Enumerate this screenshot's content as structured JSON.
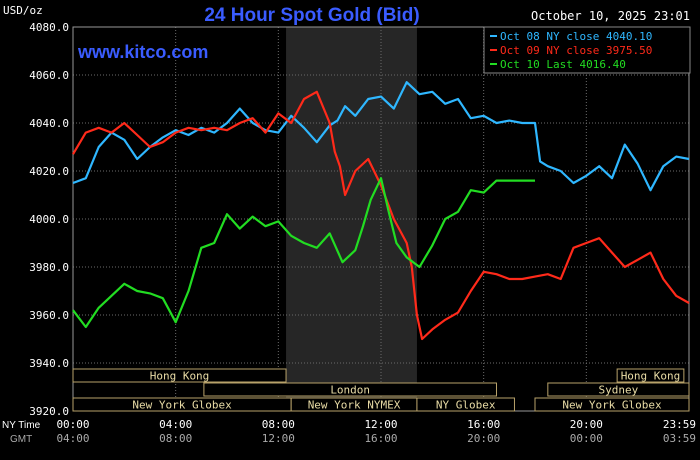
{
  "header": {
    "y_unit": "USD/oz",
    "title": "24 Hour Spot Gold (Bid)",
    "timestamp": "October 10, 2025 23:01",
    "watermark": "www.kitco.com"
  },
  "colors": {
    "background": "#000000",
    "title": "#3a5cff",
    "watermark": "#3a5cff",
    "grid": "#6b6b6b",
    "nymex_band": "#262626",
    "session_fill": "#000000",
    "session_stroke": "#b8a26a",
    "session_text": "#e9dca6",
    "axis_text": "#ffffff",
    "gmt_text": "#aaaaaa"
  },
  "chart_data": {
    "type": "line",
    "ylim": [
      3920,
      4080
    ],
    "xlim": [
      0,
      24
    ],
    "y_ticks": [
      "3920.0",
      "3940.0",
      "3960.0",
      "3980.0",
      "4000.0",
      "4020.0",
      "4040.0",
      "4060.0",
      "4080.0"
    ],
    "y_tick_values": [
      3920,
      3940,
      3960,
      3980,
      4000,
      4020,
      4040,
      4060,
      4080
    ],
    "x_ticks": [
      0,
      4,
      8,
      12,
      16,
      20,
      24
    ],
    "x_tick_labels_ny": [
      "00:00",
      "04:00",
      "08:00",
      "12:00",
      "16:00",
      "20:00",
      "23:59"
    ],
    "x_tick_labels_gmt": [
      "04:00",
      "08:00",
      "12:00",
      "16:00",
      "20:00",
      "00:00",
      "03:59"
    ],
    "x_row_label_ny": "NY Time",
    "x_row_label_gmt": "GMT",
    "highlight_band": [
      8.3,
      13.4
    ],
    "grid": true,
    "legend_position": "top-right",
    "legend": [
      {
        "text": "Oct 08 NY close 4040.10",
        "color": "#2fb7ff"
      },
      {
        "text": "Oct 09 NY close 3975.50",
        "color": "#ff2a1a"
      },
      {
        "text": "Oct 10 Last 4016.40",
        "color": "#22dd22"
      }
    ],
    "series": [
      {
        "name": "Oct 08",
        "color": "#2fb7ff",
        "x": [
          0,
          0.5,
          1,
          1.5,
          2,
          2.5,
          3,
          3.5,
          4,
          4.5,
          5,
          5.5,
          6,
          6.5,
          7,
          7.5,
          8,
          8.5,
          9,
          9.5,
          10,
          10.3,
          10.6,
          11,
          11.5,
          12,
          12.5,
          13,
          13.5,
          14,
          14.5,
          15,
          15.5,
          16,
          16.5,
          17,
          17.5,
          18,
          18.2,
          18.5,
          19,
          19.5,
          20,
          20.5,
          21,
          21.5,
          22,
          22.5,
          23,
          23.5,
          24
        ],
        "y": [
          4015,
          4017,
          4030,
          4036,
          4033,
          4025,
          4030,
          4034,
          4037,
          4035,
          4038,
          4036,
          4040,
          4046,
          4040,
          4037,
          4036,
          4043,
          4038,
          4032,
          4039,
          4041,
          4047,
          4043,
          4050,
          4051,
          4046,
          4057,
          4052,
          4053,
          4048,
          4050,
          4042,
          4043,
          4040,
          4041,
          4040,
          4040,
          4024,
          4022,
          4020,
          4015,
          4018,
          4022,
          4017,
          4031,
          4023,
          4012,
          4022,
          4026,
          4025
        ]
      },
      {
        "name": "Oct 09",
        "color": "#ff2a1a",
        "x": [
          0,
          0.5,
          1,
          1.5,
          2,
          2.5,
          3,
          3.5,
          4,
          4.5,
          5,
          5.5,
          6,
          6.5,
          7,
          7.5,
          8,
          8.5,
          9,
          9.5,
          10,
          10.2,
          10.4,
          10.6,
          11,
          11.5,
          12,
          12.5,
          13,
          13.2,
          13.4,
          13.6,
          14,
          14.5,
          15,
          15.5,
          16,
          16.5,
          17,
          17.5,
          18,
          18.5,
          19,
          19.5,
          20,
          20.5,
          21,
          21.5,
          22,
          22.5,
          23,
          23.5,
          24
        ],
        "y": [
          4027,
          4036,
          4038,
          4036,
          4040,
          4035,
          4030,
          4032,
          4036,
          4038,
          4037,
          4038,
          4037,
          4040,
          4042,
          4036,
          4044,
          4040,
          4050,
          4053,
          4040,
          4028,
          4022,
          4010,
          4020,
          4025,
          4014,
          4000,
          3990,
          3980,
          3960,
          3950,
          3954,
          3958,
          3961,
          3970,
          3978,
          3977,
          3975,
          3975,
          3976,
          3977,
          3975,
          3988,
          3990,
          3992,
          3986,
          3980,
          3983,
          3986,
          3975,
          3968,
          3965
        ]
      },
      {
        "name": "Oct 10",
        "color": "#22dd22",
        "x": [
          0,
          0.5,
          1,
          1.5,
          2,
          2.5,
          3,
          3.5,
          4,
          4.5,
          5,
          5.5,
          6,
          6.5,
          7,
          7.5,
          8,
          8.5,
          9,
          9.5,
          10,
          10.5,
          11,
          11.3,
          11.6,
          12,
          12.3,
          12.6,
          13,
          13.5,
          14,
          14.5,
          15,
          15.5,
          16,
          16.5,
          17,
          17.5,
          18
        ],
        "y": [
          3962,
          3955,
          3963,
          3968,
          3973,
          3970,
          3969,
          3967,
          3957,
          3970,
          3988,
          3990,
          4002,
          3996,
          4001,
          3997,
          3999,
          3993,
          3990,
          3988,
          3994,
          3982,
          3987,
          3997,
          4008,
          4017,
          4003,
          3990,
          3984,
          3980,
          3989,
          4000,
          4003,
          4012,
          4011,
          4016,
          4016,
          4016,
          4016
        ]
      }
    ]
  },
  "sessions": [
    {
      "label": "Hong Kong",
      "start": 0,
      "end": 8.3,
      "row": 0
    },
    {
      "label": "London",
      "start": 5.1,
      "end": 16.5,
      "row": 1
    },
    {
      "label": "New York Globex",
      "start": 0,
      "end": 8.5,
      "row": 2
    },
    {
      "label": "New York NYMEX",
      "start": 8.5,
      "end": 13.4,
      "row": 2
    },
    {
      "label": "NY Globex",
      "start": 13.4,
      "end": 17.2,
      "row": 2
    },
    {
      "label": "Hong Kong",
      "start": 21.2,
      "end": 23.8,
      "row": 0
    },
    {
      "label": "Sydney",
      "start": 18.5,
      "end": 24,
      "row": 1
    },
    {
      "label": "New York Globex",
      "start": 18,
      "end": 24,
      "row": 2
    }
  ]
}
